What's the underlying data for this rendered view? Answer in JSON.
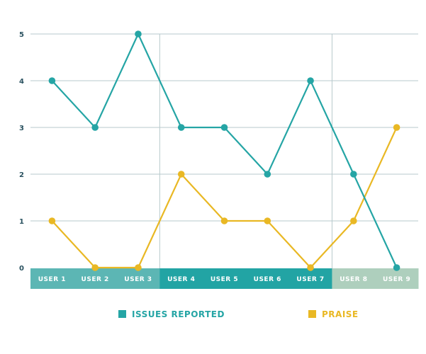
{
  "chart_data": {
    "type": "line",
    "categories": [
      "USER 1",
      "USER 2",
      "USER 3",
      "USER 4",
      "USER 5",
      "USER 6",
      "USER 7",
      "USER 8",
      "USER 9"
    ],
    "ylim": [
      0,
      5
    ],
    "yticks": [
      "0",
      "1",
      "2",
      "3",
      "4",
      "5"
    ],
    "grid": true,
    "legend_position": "bottom",
    "series": [
      {
        "name": "ISSUES REPORTED",
        "color": "#25a5a5",
        "values": [
          4,
          3,
          5,
          3,
          3,
          2,
          4,
          2,
          0
        ]
      },
      {
        "name": "PRAISE",
        "color": "#e9b824",
        "values": [
          1,
          0,
          0,
          2,
          1,
          1,
          0,
          1,
          3
        ]
      }
    ],
    "category_band_colors": [
      "#5cb6b4",
      "#5cb6b4",
      "#5cb6b4",
      "#22a4a4",
      "#22a4a4",
      "#22a4a4",
      "#22a4a4",
      "#aecfbd",
      "#aecfbd"
    ]
  }
}
